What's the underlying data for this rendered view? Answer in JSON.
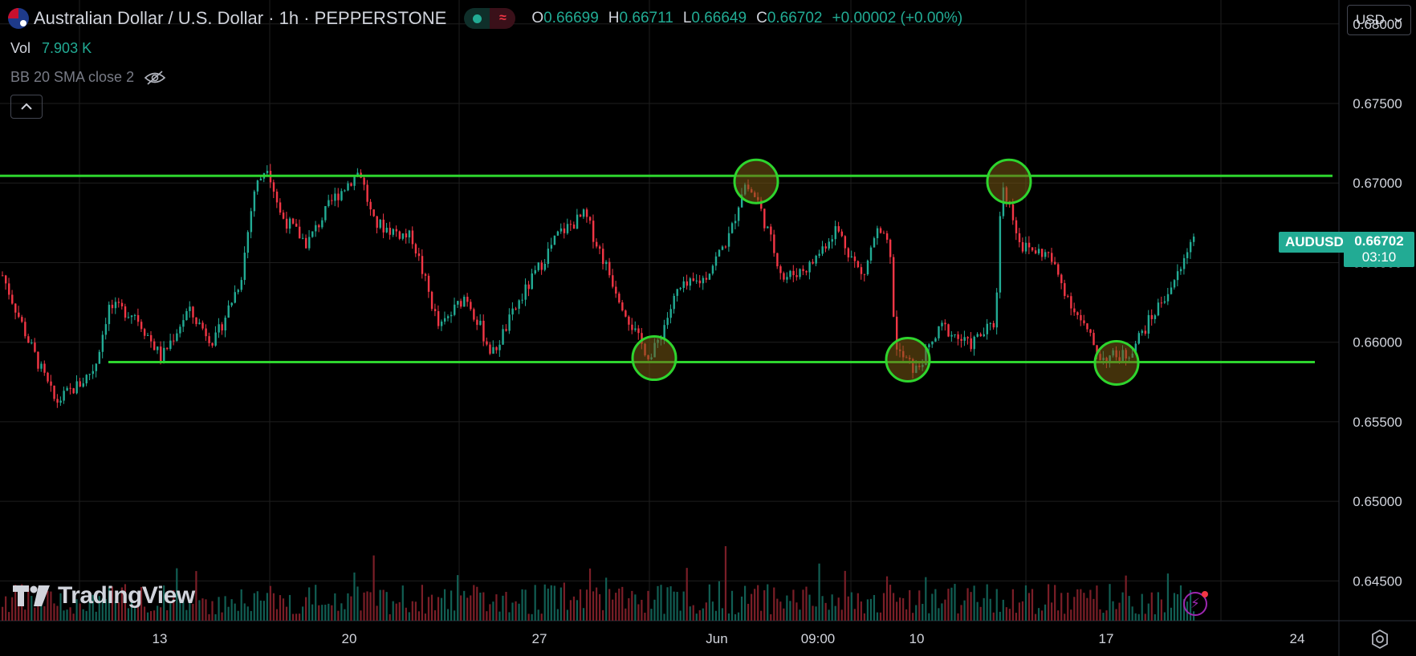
{
  "header": {
    "symbol_title": "Australian Dollar / U.S. Dollar · 1h · PEPPERSTONE",
    "ohlc": {
      "o_label": "O",
      "o": "0.66699",
      "h_label": "H",
      "h": "0.66711",
      "l_label": "L",
      "l": "0.66649",
      "c_label": "C",
      "c": "0.66702",
      "change": "+0.00002 (+0.00%)"
    },
    "vol_label": "Vol",
    "vol_value": "7.903 K",
    "indicator": "BB 20 SMA close 2",
    "currency": "USD"
  },
  "price_scale": {
    "ticks": [
      "0.68000",
      "0.67500",
      "0.67000",
      "0.66500",
      "0.66000",
      "0.65500",
      "0.65000",
      "0.64500"
    ],
    "ticker": "AUDUSD",
    "last_price": "0.66702",
    "countdown": "03:10"
  },
  "time_axis": {
    "labels": [
      "13",
      "20",
      "27",
      "Jun",
      "09:00",
      "10",
      "17",
      "24"
    ]
  },
  "logo_text": "TradingView",
  "colors": {
    "up": "#22ab94",
    "down": "#f23645",
    "level": "#2ed52e",
    "grid": "#1e1e1e"
  },
  "chart_data": {
    "type": "candlestick",
    "instrument": "AUDUSD",
    "timeframe": "1h",
    "ylim": [
      0.6425,
      0.6815
    ],
    "levels": [
      {
        "name": "resistance",
        "price": 0.67045
      },
      {
        "name": "support",
        "price": 0.65875
      }
    ],
    "highlighted_touches": [
      {
        "label": "Jun",
        "price": 0.6701
      },
      {
        "label": "Jun",
        "price": 0.6701
      },
      {
        "label": "27",
        "price": 0.659
      },
      {
        "label": "10",
        "price": 0.6589
      },
      {
        "label": "17",
        "price": 0.6587
      }
    ],
    "price_path": [
      [
        0.0,
        0.6642
      ],
      [
        0.02,
        0.66
      ],
      [
        0.04,
        0.6562
      ],
      [
        0.06,
        0.6575
      ],
      [
        0.07,
        0.6585
      ],
      [
        0.08,
        0.6622
      ],
      [
        0.1,
        0.6618
      ],
      [
        0.12,
        0.659
      ],
      [
        0.14,
        0.662
      ],
      [
        0.16,
        0.66
      ],
      [
        0.18,
        0.664
      ],
      [
        0.19,
        0.6695
      ],
      [
        0.2,
        0.6712
      ],
      [
        0.21,
        0.668
      ],
      [
        0.23,
        0.6662
      ],
      [
        0.25,
        0.669
      ],
      [
        0.27,
        0.6708
      ],
      [
        0.28,
        0.6675
      ],
      [
        0.31,
        0.6665
      ],
      [
        0.33,
        0.6608
      ],
      [
        0.35,
        0.663
      ],
      [
        0.37,
        0.6592
      ],
      [
        0.39,
        0.6625
      ],
      [
        0.42,
        0.6668
      ],
      [
        0.44,
        0.668
      ],
      [
        0.46,
        0.664
      ],
      [
        0.48,
        0.6602
      ],
      [
        0.49,
        0.659
      ],
      [
        0.51,
        0.6632
      ],
      [
        0.53,
        0.664
      ],
      [
        0.55,
        0.6668
      ],
      [
        0.56,
        0.67
      ],
      [
        0.57,
        0.669
      ],
      [
        0.59,
        0.664
      ],
      [
        0.61,
        0.6648
      ],
      [
        0.63,
        0.6672
      ],
      [
        0.65,
        0.664
      ],
      [
        0.66,
        0.667
      ],
      [
        0.67,
        0.666
      ],
      [
        0.675,
        0.6595
      ],
      [
        0.69,
        0.6582
      ],
      [
        0.71,
        0.661
      ],
      [
        0.73,
        0.6598
      ],
      [
        0.75,
        0.6612
      ],
      [
        0.755,
        0.6702
      ],
      [
        0.77,
        0.666
      ],
      [
        0.79,
        0.6655
      ],
      [
        0.81,
        0.662
      ],
      [
        0.83,
        0.659
      ],
      [
        0.85,
        0.6592
      ],
      [
        0.87,
        0.6618
      ],
      [
        0.89,
        0.6645
      ],
      [
        0.9,
        0.667
      ]
    ]
  }
}
